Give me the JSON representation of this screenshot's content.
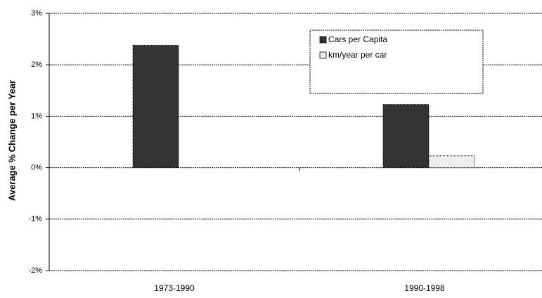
{
  "chart_data": {
    "type": "bar",
    "y_label": "Average % Change per Year",
    "categories": [
      "1973-1990",
      "1990-1998"
    ],
    "series": [
      {
        "name": "Cars per Capita",
        "color": "#333333",
        "values": [
          2.38,
          1.23
        ]
      },
      {
        "name": "km/year per car",
        "color": "#eeeeee",
        "values": [
          0,
          0.23
        ]
      }
    ],
    "ylim": [
      -2,
      3
    ],
    "yticks": [
      {
        "value": -2,
        "label": "-2%"
      },
      {
        "value": -1,
        "label": "-1%"
      },
      {
        "value": 0,
        "label": "0%"
      },
      {
        "value": 1,
        "label": "1%"
      },
      {
        "value": 2,
        "label": "2%"
      },
      {
        "value": 3,
        "label": "3%"
      }
    ],
    "grid": true,
    "legend": "upper right"
  }
}
